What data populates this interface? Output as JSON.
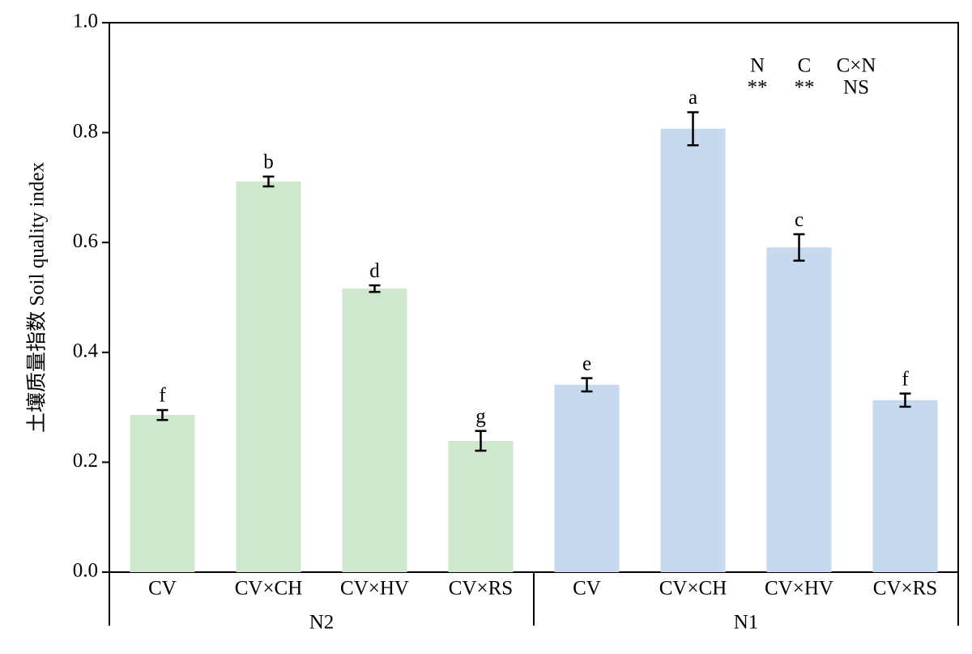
{
  "chart_data": {
    "type": "bar",
    "y_label": "土壤质量指数 Soil quality index",
    "ylim": [
      0,
      1.0
    ],
    "yticks": [
      {
        "value": 0,
        "label": "0.0"
      },
      0.2,
      0.4,
      0.6,
      0.8,
      {
        "value": 1.0,
        "label": "1.0"
      }
    ],
    "series": [
      {
        "name": "N2",
        "color": "#cde8cc",
        "categories": [
          "CV",
          "CV×CH",
          "CV×HV",
          "CV×RS"
        ],
        "values": [
          0.286,
          0.711,
          0.516,
          0.239
        ],
        "errors": [
          0.009,
          0.009,
          0.006,
          0.018
        ],
        "letters": [
          "f",
          "b",
          "d",
          "g"
        ]
      },
      {
        "name": "N1",
        "color": "#c6d9ee",
        "categories": [
          "CV",
          "CV×CH",
          "CV×HV",
          "CV×RS"
        ],
        "values": [
          0.341,
          0.807,
          0.591,
          0.313
        ],
        "errors": [
          0.012,
          0.03,
          0.024,
          0.012
        ],
        "letters": [
          "e",
          "a",
          "c",
          "f"
        ]
      }
    ],
    "significance": {
      "headers": [
        "N",
        "C",
        "C×N"
      ],
      "values": [
        "**",
        "**",
        "NS"
      ]
    }
  }
}
